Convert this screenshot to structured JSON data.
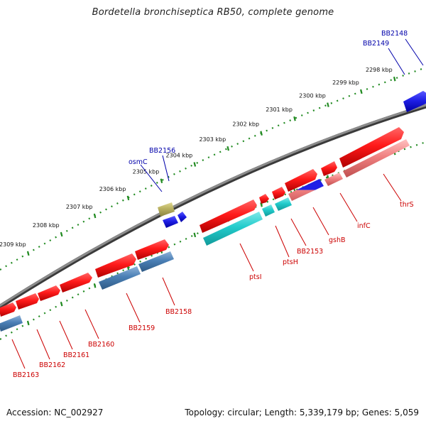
{
  "title": "Bordetella bronchiseptica RB50, complete genome",
  "footer": {
    "accession": "Accession: NC_002927",
    "summary": "Topology: circular; Length: 5,339,179 bp; Genes: 5,059"
  },
  "ruler": [
    {
      "label": "2298 kbp",
      "x": 2298
    },
    {
      "label": "2299 kbp",
      "x": 2299
    },
    {
      "label": "2300 kbp",
      "x": 2300
    },
    {
      "label": "2301 kbp",
      "x": 2301
    },
    {
      "label": "2302 kbp",
      "x": 2302
    },
    {
      "label": "2303 kbp",
      "x": 2303
    },
    {
      "label": "2304 kbp",
      "x": 2304
    },
    {
      "label": "2305 kbp",
      "x": 2305
    },
    {
      "label": "2306 kbp",
      "x": 2306
    },
    {
      "label": "2307 kbp",
      "x": 2307
    },
    {
      "label": "2308 kbp",
      "x": 2308
    },
    {
      "label": "2309 kbp",
      "x": 2309
    }
  ],
  "genes_upper": [
    {
      "name": "BB2148",
      "color": "#0000aa"
    },
    {
      "name": "BB2149",
      "color": "#0000aa"
    },
    {
      "name": "BB2156",
      "color": "#0000aa"
    },
    {
      "name": "osmC",
      "color": "#0000aa"
    }
  ],
  "genes_lower": [
    {
      "name": "thrS",
      "color": "#cc0000"
    },
    {
      "name": "infC",
      "color": "#cc0000"
    },
    {
      "name": "gshB",
      "color": "#cc0000"
    },
    {
      "name": "BB2153",
      "color": "#cc0000"
    },
    {
      "name": "ptsH",
      "color": "#cc0000"
    },
    {
      "name": "ptsI",
      "color": "#cc0000"
    },
    {
      "name": "BB2158",
      "color": "#cc0000"
    },
    {
      "name": "BB2159",
      "color": "#cc0000"
    },
    {
      "name": "BB2160",
      "color": "#cc0000"
    },
    {
      "name": "BB2161",
      "color": "#cc0000"
    },
    {
      "name": "BB2162",
      "color": "#cc0000"
    },
    {
      "name": "BB2163",
      "color": "#cc0000"
    }
  ],
  "colors": {
    "backbone": "#808080",
    "ruler_ticks": "#228b22",
    "forward_red": "#ff1a1a",
    "reverse_blue": "#1f1fe6",
    "cyan": "#22cccc",
    "steel_blue": "#4a7fb5",
    "pink": "#f08080",
    "olive": "#b8b060"
  }
}
